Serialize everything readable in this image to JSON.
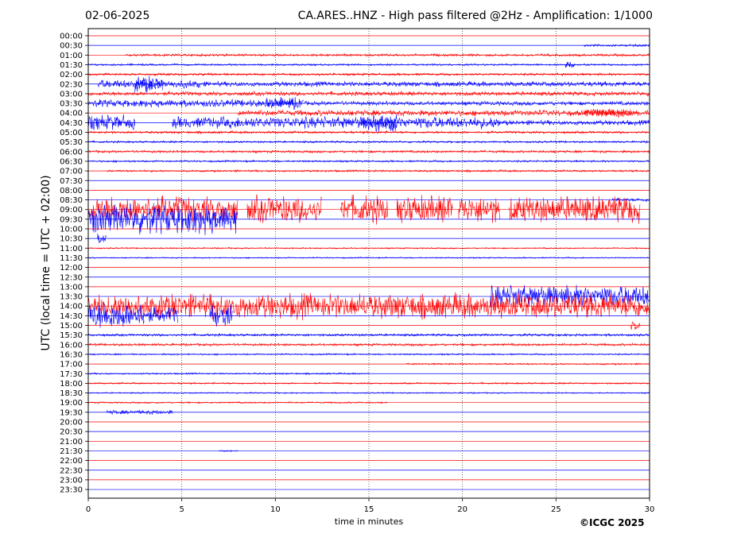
{
  "header": {
    "date": "02-06-2025",
    "title": "CA.ARES..HNZ - High pass filtered @2Hz - Amplification: 1/1000"
  },
  "copyright": "©ICGC 2025",
  "chart_data": {
    "type": "line",
    "title": "CA.ARES..HNZ - High pass filtered @2Hz - Amplification: 1/1000",
    "xlabel": "time in minutes",
    "ylabel": "UTC (local time = UTC + 02:00)",
    "xlim": [
      0,
      30
    ],
    "x_ticks": [
      "0",
      "5",
      "10",
      "15",
      "20",
      "25",
      "30"
    ],
    "y_ticks": [
      "00:00",
      "00:30",
      "01:00",
      "01:30",
      "02:00",
      "02:30",
      "03:00",
      "03:30",
      "04:00",
      "04:30",
      "05:00",
      "05:30",
      "06:00",
      "06:30",
      "07:00",
      "07:30",
      "08:00",
      "08:30",
      "09:00",
      "09:30",
      "10:00",
      "10:30",
      "11:00",
      "11:30",
      "12:00",
      "12:30",
      "13:00",
      "13:30",
      "14:00",
      "14:30",
      "15:00",
      "15:30",
      "16:00",
      "16:30",
      "17:00",
      "17:30",
      "18:00",
      "18:30",
      "19:00",
      "19:30",
      "20:00",
      "20:30",
      "21:00",
      "21:30",
      "22:00",
      "22:30",
      "23:00",
      "23:30"
    ],
    "trace_colors": [
      "#ff0000",
      "#0000ff"
    ],
    "vertical_grid": "dotted",
    "activity": [
      {
        "trace": "00:30",
        "segments": [
          [
            26.5,
            30,
            0.15
          ]
        ]
      },
      {
        "trace": "01:00",
        "segments": [
          [
            2,
            30,
            0.15
          ]
        ]
      },
      {
        "trace": "01:30",
        "segments": [
          [
            0,
            30,
            0.12
          ],
          [
            25.5,
            26,
            0.4
          ]
        ]
      },
      {
        "trace": "02:00",
        "segments": [
          [
            0,
            30,
            0.15
          ]
        ]
      },
      {
        "trace": "02:30",
        "segments": [
          [
            0.5,
            6,
            0.5
          ],
          [
            2.5,
            4,
            1.0
          ],
          [
            6,
            30,
            0.3
          ]
        ]
      },
      {
        "trace": "03:00",
        "segments": [
          [
            0,
            30,
            0.25
          ]
        ]
      },
      {
        "trace": "03:30",
        "segments": [
          [
            0,
            11,
            0.45
          ],
          [
            9.5,
            11.5,
            0.7
          ],
          [
            11.5,
            30,
            0.25
          ]
        ]
      },
      {
        "trace": "04:00",
        "segments": [
          [
            8,
            30,
            0.35
          ],
          [
            26.5,
            29,
            0.6
          ]
        ]
      },
      {
        "trace": "04:30",
        "segments": [
          [
            0,
            2.5,
            0.9
          ],
          [
            4.5,
            22,
            0.7
          ],
          [
            14.5,
            16.5,
            1.1
          ],
          [
            22,
            30,
            0.3
          ]
        ]
      },
      {
        "trace": "05:00",
        "segments": [
          [
            0,
            30,
            0.15
          ]
        ]
      },
      {
        "trace": "05:30",
        "segments": [
          [
            0,
            30,
            0.12
          ]
        ]
      },
      {
        "trace": "06:00",
        "segments": [
          [
            0,
            30,
            0.15
          ]
        ]
      },
      {
        "trace": "06:30",
        "segments": [
          [
            0,
            30,
            0.12
          ]
        ]
      },
      {
        "trace": "07:00",
        "segments": [
          [
            1,
            30,
            0.12
          ]
        ]
      },
      {
        "trace": "08:30",
        "segments": [
          [
            28,
            30,
            0.2
          ]
        ]
      },
      {
        "trace": "09:00",
        "segments": [
          [
            0,
            8,
            1.6
          ],
          [
            8.5,
            12.5,
            1.6
          ],
          [
            13.5,
            16,
            1.6
          ],
          [
            16.5,
            19.5,
            1.6
          ],
          [
            19.8,
            22,
            1.6
          ],
          [
            22.5,
            29.5,
            1.6
          ]
        ]
      },
      {
        "trace": "09:30",
        "segments": [
          [
            0,
            8,
            1.8
          ]
        ]
      },
      {
        "trace": "10:30",
        "segments": [
          [
            0.5,
            1,
            0.6
          ]
        ]
      },
      {
        "trace": "11:00",
        "segments": [
          [
            0,
            30,
            0.08
          ]
        ]
      },
      {
        "trace": "11:30",
        "segments": [
          [
            0,
            30,
            0.08
          ]
        ]
      },
      {
        "trace": "13:30",
        "segments": [
          [
            21.5,
            30,
            1.3
          ]
        ]
      },
      {
        "trace": "14:00",
        "segments": [
          [
            0,
            30,
            1.5
          ]
        ]
      },
      {
        "trace": "14:30",
        "segments": [
          [
            0,
            3,
            1.7
          ],
          [
            3,
            4.8,
            1.0
          ],
          [
            6.5,
            7.7,
            1.4
          ]
        ]
      },
      {
        "trace": "15:00",
        "segments": [
          [
            29,
            29.5,
            0.6
          ]
        ]
      },
      {
        "trace": "15:30",
        "segments": [
          [
            0,
            30,
            0.15
          ]
        ]
      },
      {
        "trace": "16:00",
        "segments": [
          [
            0,
            30,
            0.15
          ]
        ]
      },
      {
        "trace": "16:30",
        "segments": [
          [
            0,
            30,
            0.1
          ]
        ]
      },
      {
        "trace": "17:00",
        "segments": [
          [
            17,
            30,
            0.1
          ]
        ]
      },
      {
        "trace": "17:30",
        "segments": [
          [
            0,
            15,
            0.1
          ]
        ]
      },
      {
        "trace": "18:00",
        "segments": [
          [
            0,
            30,
            0.1
          ]
        ]
      },
      {
        "trace": "18:30",
        "segments": [
          [
            0,
            30,
            0.08
          ]
        ]
      },
      {
        "trace": "19:00",
        "segments": [
          [
            0,
            16,
            0.1
          ]
        ]
      },
      {
        "trace": "19:30",
        "segments": [
          [
            1,
            4.5,
            0.25
          ]
        ]
      },
      {
        "trace": "21:30",
        "segments": [
          [
            7,
            8,
            0.1
          ]
        ]
      }
    ]
  }
}
